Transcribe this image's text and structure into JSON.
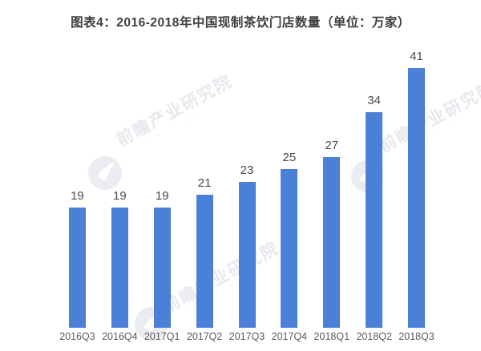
{
  "title": "图表4：2016-2018年中国现制茶饮门店数量（单位：万家）",
  "watermark": {
    "text": "前瞻产业研究院",
    "logo_name": "qianzhan-bird-logo"
  },
  "chart_data": {
    "type": "bar",
    "title": "图表4：2016-2018年中国现制茶饮门店数量（单位：万家）",
    "categories": [
      "2016Q3",
      "2016Q4",
      "2017Q1",
      "2017Q2",
      "2017Q3",
      "2017Q4",
      "2018Q1",
      "2018Q2",
      "2018Q3"
    ],
    "values": [
      19,
      19,
      19,
      21,
      23,
      25,
      27,
      34,
      41
    ],
    "unit": "万家",
    "xlabel": "",
    "ylabel": "",
    "ylim": [
      0,
      44
    ],
    "grid": false,
    "legend": "none",
    "value_labels_shown": true,
    "bar_color": "#4a80d8",
    "value_label_color": "#4a4a4a",
    "axis_label_color": "#595959",
    "title_color": "#3e3e3e"
  }
}
